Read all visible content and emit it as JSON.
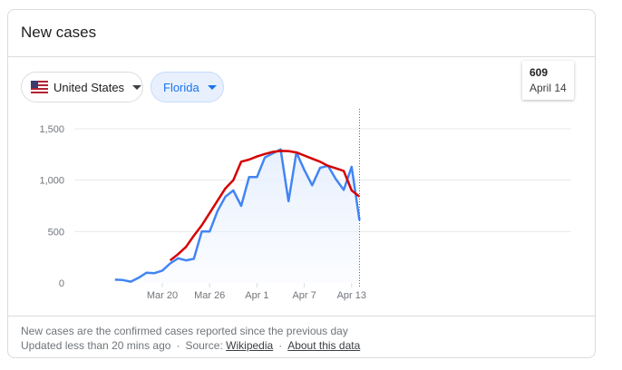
{
  "card": {
    "title": "New cases"
  },
  "filters": {
    "country": {
      "label": "United States",
      "icon": "us-flag-icon"
    },
    "state": {
      "label": "Florida"
    }
  },
  "tooltip": {
    "value": "609",
    "date": "April 14"
  },
  "footer": {
    "description": "New cases are the confirmed cases reported since the previous day",
    "updated": "Updated less than 20 mins ago",
    "source_label": "Source:",
    "source_link": "Wikipedia",
    "about_link": "About this data"
  },
  "colors": {
    "daily_line": "#4285f4",
    "average_line": "#d50000",
    "area_fill": "#e8f0fe",
    "grid": "#e8eaed",
    "filter_selected": "#1a73e8"
  },
  "chart_data": {
    "type": "line",
    "title": "",
    "xlabel": "",
    "ylabel": "",
    "x_start": "Mar 10",
    "x_end": "Apr 14",
    "x_tick_labels": [
      "Mar 20",
      "Mar 26",
      "Apr 1",
      "Apr 7",
      "Apr 13"
    ],
    "x_tick_day_index": [
      10,
      16,
      22,
      28,
      34
    ],
    "y_ticks": [
      0,
      500,
      1000,
      1500
    ],
    "y_tick_labels": [
      "0",
      "500",
      "1,000",
      "1,500"
    ],
    "ylim": [
      0,
      1500
    ],
    "grid": true,
    "series": [
      {
        "values": [
          32,
          28,
          12,
          50,
          100,
          95,
          120,
          190,
          240,
          220,
          235,
          500,
          500,
          700,
          840,
          900,
          750,
          1030,
          1030,
          1220,
          1260,
          1300,
          795,
          1270,
          1100,
          950,
          1120,
          1140,
          1010,
          905,
          1130,
          609
        ],
        "start_day_index": 4,
        "style": "area"
      },
      {
        "values": [
          220,
          280,
          350,
          460,
          560,
          680,
          800,
          920,
          1000,
          1180,
          1200,
          1230,
          1255,
          1275,
          1285,
          1283,
          1270,
          1240,
          1210,
          1180,
          1140,
          1115,
          1090,
          900,
          840
        ],
        "start_day_index": 11,
        "style": "line"
      }
    ]
  }
}
